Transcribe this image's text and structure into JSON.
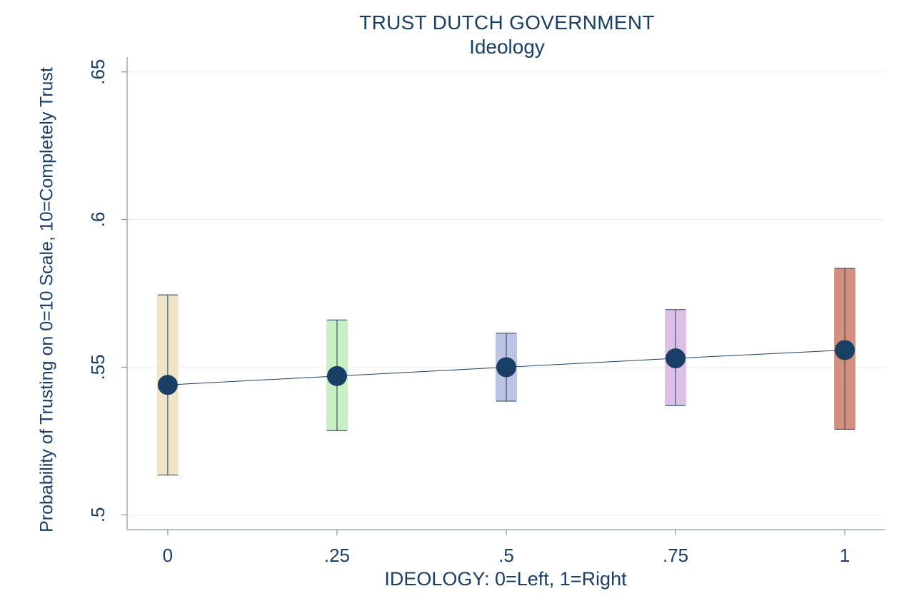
{
  "chart_data": {
    "type": "scatter",
    "title": "TRUST DUTCH GOVERNMENT",
    "subtitle": "Ideology",
    "xlabel": "IDEOLOGY: 0=Left, 1=Right",
    "ylabel": "Probability of Trusting on 0=10 Scale, 10=Completely Trust",
    "xlim": [
      -0.06,
      1.06
    ],
    "ylim": [
      0.495,
      0.655
    ],
    "x_ticks": [
      {
        "value": 0,
        "label": "0"
      },
      {
        "value": 0.25,
        "label": ".25"
      },
      {
        "value": 0.5,
        "label": ".5"
      },
      {
        "value": 0.75,
        "label": ".75"
      },
      {
        "value": 1,
        "label": "1"
      }
    ],
    "y_ticks": [
      {
        "value": 0.5,
        "label": ".5"
      },
      {
        "value": 0.55,
        "label": ".55"
      },
      {
        "value": 0.6,
        "label": ".6"
      },
      {
        "value": 0.65,
        "label": ".65"
      }
    ],
    "grid": true,
    "points": [
      {
        "x": 0,
        "y": 0.544,
        "lower": 0.5135,
        "upper": 0.5745,
        "bar_color": "#efe4c8"
      },
      {
        "x": 0.25,
        "y": 0.547,
        "lower": 0.5285,
        "upper": 0.566,
        "bar_color": "#c9efc4"
      },
      {
        "x": 0.5,
        "y": 0.55,
        "lower": 0.5385,
        "upper": 0.5615,
        "bar_color": "#bcc3e3"
      },
      {
        "x": 0.75,
        "y": 0.553,
        "lower": 0.537,
        "upper": 0.5695,
        "bar_color": "#dcc0e6"
      },
      {
        "x": 1,
        "y": 0.5558,
        "lower": 0.529,
        "upper": 0.5835,
        "bar_color": "#d3907f"
      }
    ],
    "colors": {
      "marker": "#1a3f66",
      "text": "#1a3f66",
      "grid": "#eef1f4",
      "axis": "#8a97a6"
    }
  }
}
